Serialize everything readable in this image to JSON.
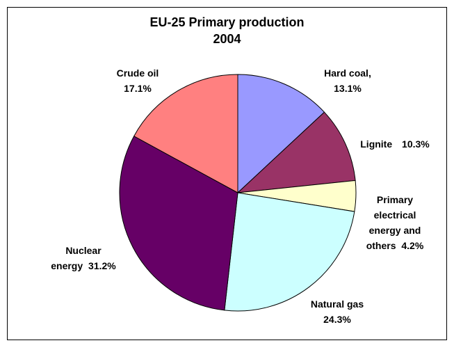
{
  "chart_data": {
    "type": "pie",
    "title": "EU-25  Primary production",
    "subtitle": "2004",
    "categories": [
      "Hard coal,",
      "Lignite",
      "Primary electrical energy and others",
      "Natural gas",
      "Nuclear energy",
      "Crude oil"
    ],
    "values": [
      13.1,
      10.3,
      4.2,
      24.3,
      31.2,
      17.1
    ],
    "value_labels": [
      "13.1%",
      "10.3%",
      "4.2%",
      "24.3%",
      "31.2%",
      "17.1%"
    ],
    "colors": [
      "#9999ff",
      "#993366",
      "#ffffcc",
      "#ccffff",
      "#660066",
      "#ff8080"
    ]
  }
}
